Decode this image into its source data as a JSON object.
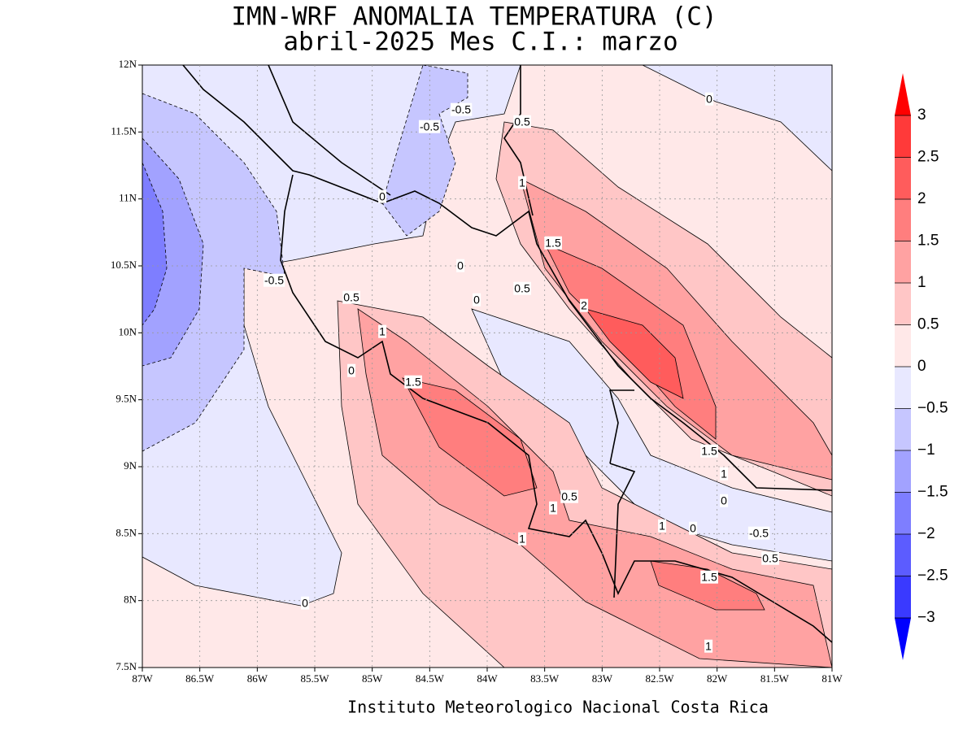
{
  "title": [
    "IMN-WRF  ANOMALIA TEMPERATURA (C)",
    "abril-2025 Mes C.I.: marzo"
  ],
  "map": {
    "lon_ticks": [
      "87W",
      "86.5W",
      "86W",
      "85.5W",
      "85W",
      "84.5W",
      "84W",
      "83.5W",
      "83W",
      "82.5W",
      "82W",
      "81.5W",
      "81W"
    ],
    "lat_ticks": [
      "12N",
      "11.5N",
      "11N",
      "10.5N",
      "10N",
      "9.5N",
      "9N",
      "8.5N",
      "8N",
      "7.5N"
    ],
    "contour_labels": [
      "-0.5",
      "-0.5",
      "0.5",
      "0",
      "1",
      "0",
      "1.5",
      "0",
      "-0.5",
      "0.5",
      "0.5",
      "0",
      "2",
      "1",
      "0",
      "1.5",
      "1.5",
      "1",
      "0",
      "0.5",
      "1",
      "1",
      "0",
      "-0.5",
      "1",
      "0.5",
      "1.5",
      "0",
      "1"
    ]
  },
  "colorbar": {
    "labels": [
      "3",
      "2.5",
      "2",
      "1.5",
      "1",
      "0.5",
      "0",
      "−0.5",
      "−1",
      "−1.5",
      "−2",
      "−2.5",
      "−3"
    ],
    "colors": [
      "#ff0000",
      "#ff3a3a",
      "#ff5c5c",
      "#ff7e7e",
      "#ffa2a2",
      "#ffc6c6",
      "#ffe8e8",
      "#e8e8ff",
      "#c6c6ff",
      "#a2a2ff",
      "#7e7eff",
      "#5c5cff",
      "#3a3aff",
      "#0000ff"
    ]
  },
  "footer": "Instituto Meteorologico Nacional Costa Rica"
}
